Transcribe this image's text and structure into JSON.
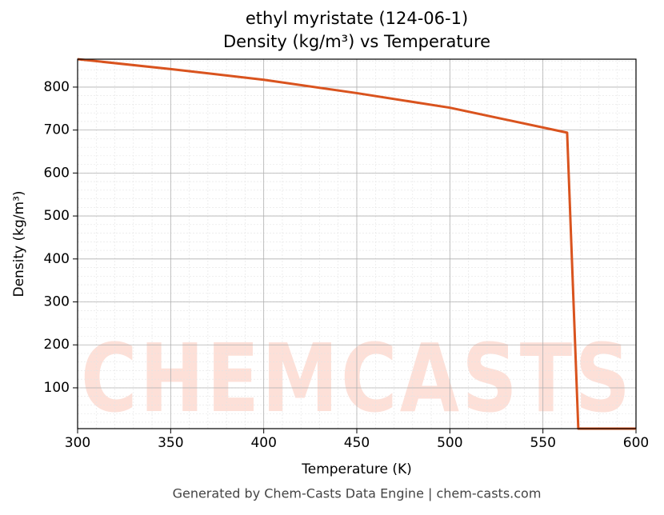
{
  "chart_data": {
    "type": "line",
    "title": "ethyl myristate (124-06-1)",
    "subtitle": "Density (kg/m³) vs Temperature",
    "x_label": "Temperature (K)",
    "y_label": "Density (kg/m³)",
    "x": [
      300,
      350,
      400,
      450,
      500,
      563,
      569,
      600
    ],
    "series": [
      {
        "name": "Density",
        "color": "#d9531e",
        "values": [
          865,
          842,
          817,
          786,
          752,
          694,
          5,
          5
        ]
      }
    ],
    "xlim": [
      300,
      600
    ],
    "xticks": [
      300,
      350,
      400,
      450,
      500,
      550,
      600
    ],
    "ylim": [
      5,
      865
    ],
    "yticks": [
      100,
      200,
      300,
      400,
      500,
      600,
      700,
      800
    ],
    "grid": true,
    "watermark": "CHEMCASTS",
    "footer": "Generated by Chem-Casts Data Engine | chem-casts.com"
  }
}
